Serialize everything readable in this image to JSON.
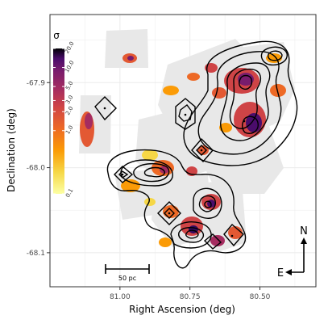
{
  "chart_data": {
    "type": "heatmap",
    "xlabel": "Right Ascension (deg)",
    "ylabel": "Declination (deg)",
    "x_ticks": [
      "81.00",
      "80.75",
      "80.50"
    ],
    "y_ticks": [
      "-67.9",
      "-68.0",
      "-68.1"
    ],
    "x_tick_values": [
      81.0,
      80.75,
      80.5
    ],
    "y_tick_values": [
      -67.9,
      -68.0,
      -68.1
    ],
    "xlim": [
      81.25,
      80.3
    ],
    "ylim": [
      -68.14,
      -67.82
    ],
    "grid": true,
    "colorbar": {
      "title": "σ",
      "colormap": "inferno",
      "scale": "log",
      "range": [
        0.1,
        20.0
      ],
      "tick_labels": [
        "20.0",
        "10.0",
        "5.0",
        "3.0",
        "2.0",
        "1.0",
        "0.1"
      ],
      "tick_values": [
        20.0,
        10.0,
        5.0,
        3.0,
        2.0,
        1.0,
        0.1
      ]
    },
    "scale_bar_label": "50 pc",
    "compass": {
      "north": "N",
      "east": "E"
    },
    "colors": {
      "coverage": "#e8e8e8",
      "contour": "#000000",
      "grid": "#ebebeb",
      "panel_border": "#333333"
    }
  }
}
